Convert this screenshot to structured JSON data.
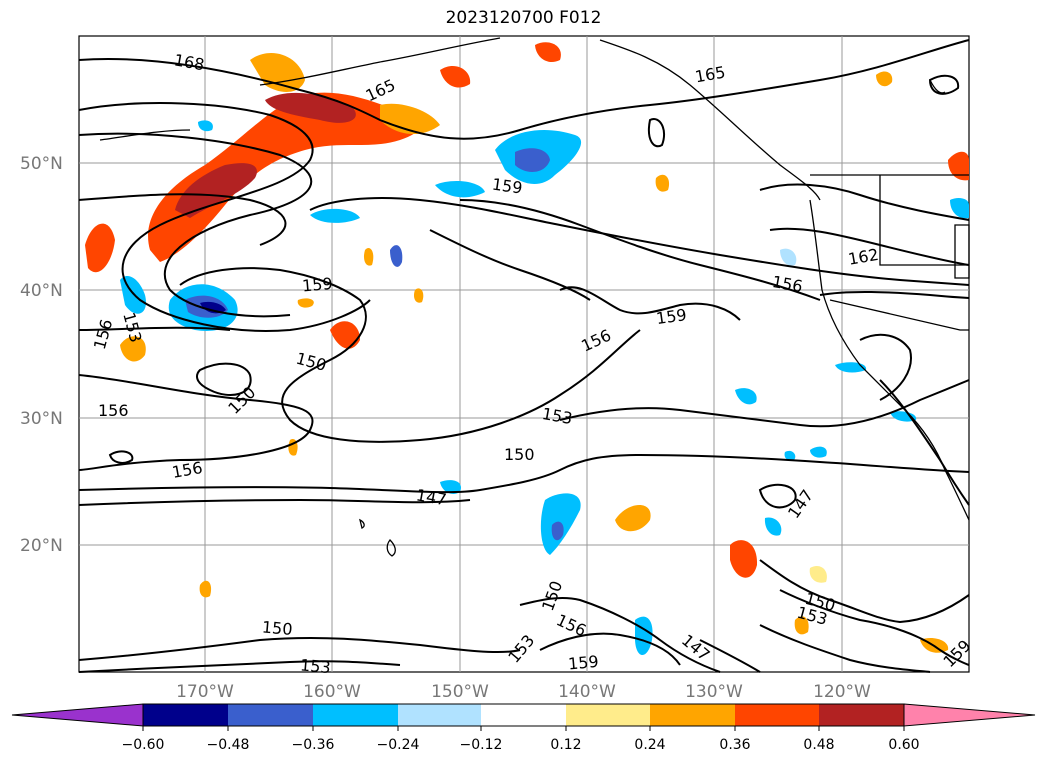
{
  "title": "2023120700 F012",
  "lat_labels": [
    "50°N",
    "40°N",
    "30°N",
    "20°N"
  ],
  "lon_labels": [
    "170°W",
    "160°W",
    "150°W",
    "140°W",
    "130°W",
    "120°W"
  ],
  "contour_labels": [
    "168",
    "165",
    "165",
    "162",
    "159",
    "159",
    "159",
    "159",
    "156",
    "156",
    "156",
    "156",
    "156",
    "156",
    "153",
    "153",
    "153",
    "153",
    "153",
    "150",
    "150",
    "150",
    "150",
    "150",
    "150",
    "147",
    "147",
    "147",
    "159"
  ],
  "colorbar": {
    "ticks": [
      "−0.60",
      "−0.48",
      "−0.36",
      "−0.24",
      "−0.12",
      "0.12",
      "0.24",
      "0.36",
      "0.48",
      "0.60"
    ],
    "colors": [
      "#9a32cd",
      "#00008b",
      "#3a5fcd",
      "#00bfff",
      "#b0e2ff",
      "#ffffff",
      "#ffec8b",
      "#ffa500",
      "#ff4500",
      "#b22222",
      "#ff82ab"
    ]
  },
  "colors": {
    "neg_extreme": "#9a32cd",
    "neg_strong": "#00008b",
    "neg_mid": "#3a5fcd",
    "neg_light": "#00bfff",
    "neg_pale": "#b0e2ff",
    "pos_pale": "#ffec8b",
    "pos_light": "#ffa500",
    "pos_mid": "#ff4500",
    "pos_strong": "#b22222",
    "pos_extreme": "#ff82ab"
  }
}
